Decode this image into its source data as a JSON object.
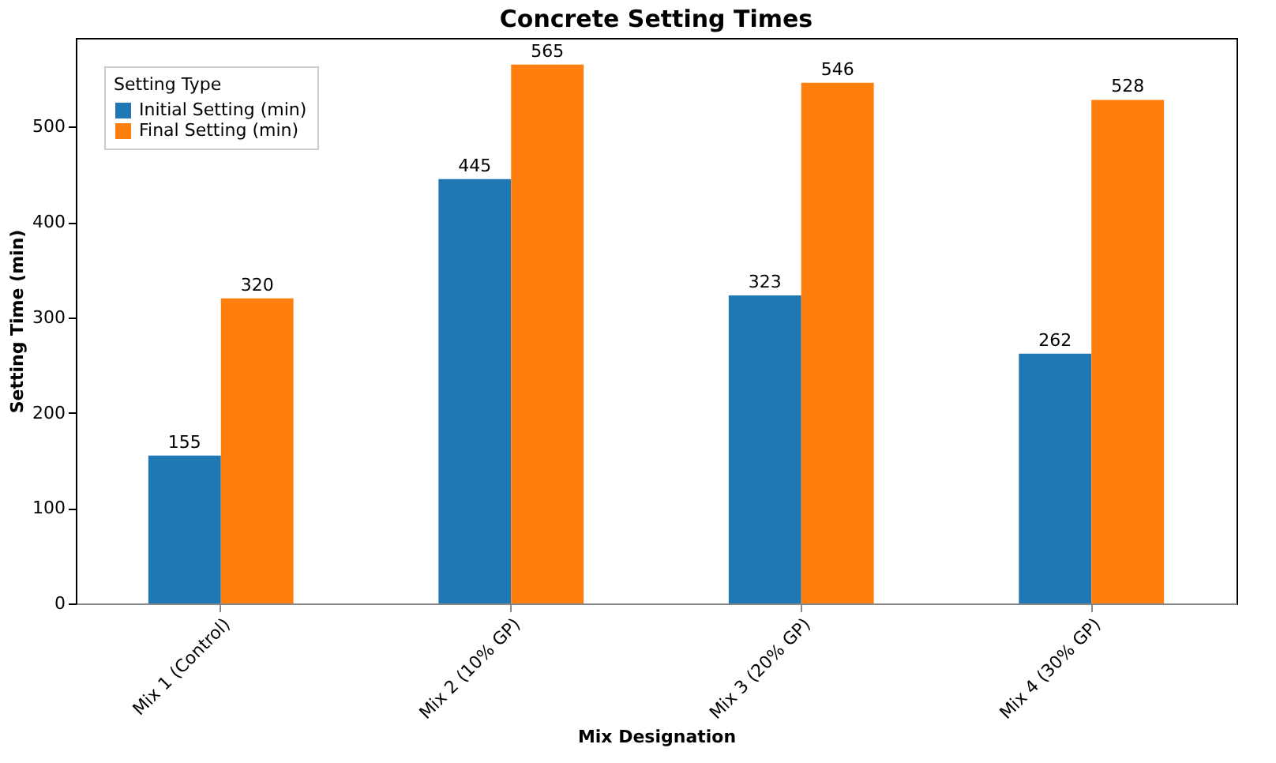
{
  "chart_data": {
    "type": "bar",
    "title": "Concrete Setting Times",
    "xlabel": "Mix Designation",
    "ylabel": "Setting Time (min)",
    "legend_title": "Setting Type",
    "categories": [
      "Mix 1 (Control)",
      "Mix 2 (10% GP)",
      "Mix 3 (20% GP)",
      "Mix 4 (30% GP)"
    ],
    "series": [
      {
        "name": "Initial Setting (min)",
        "color": "#1f77b4",
        "values": [
          155,
          445,
          323,
          262
        ]
      },
      {
        "name": "Final Setting (min)",
        "color": "#ff7f0e",
        "values": [
          320,
          565,
          546,
          528
        ]
      }
    ],
    "ylim": [
      0,
      593
    ],
    "yticks": [
      0,
      100,
      200,
      300,
      400,
      500
    ],
    "grid": false,
    "legend": "top left",
    "data_labels": true
  }
}
